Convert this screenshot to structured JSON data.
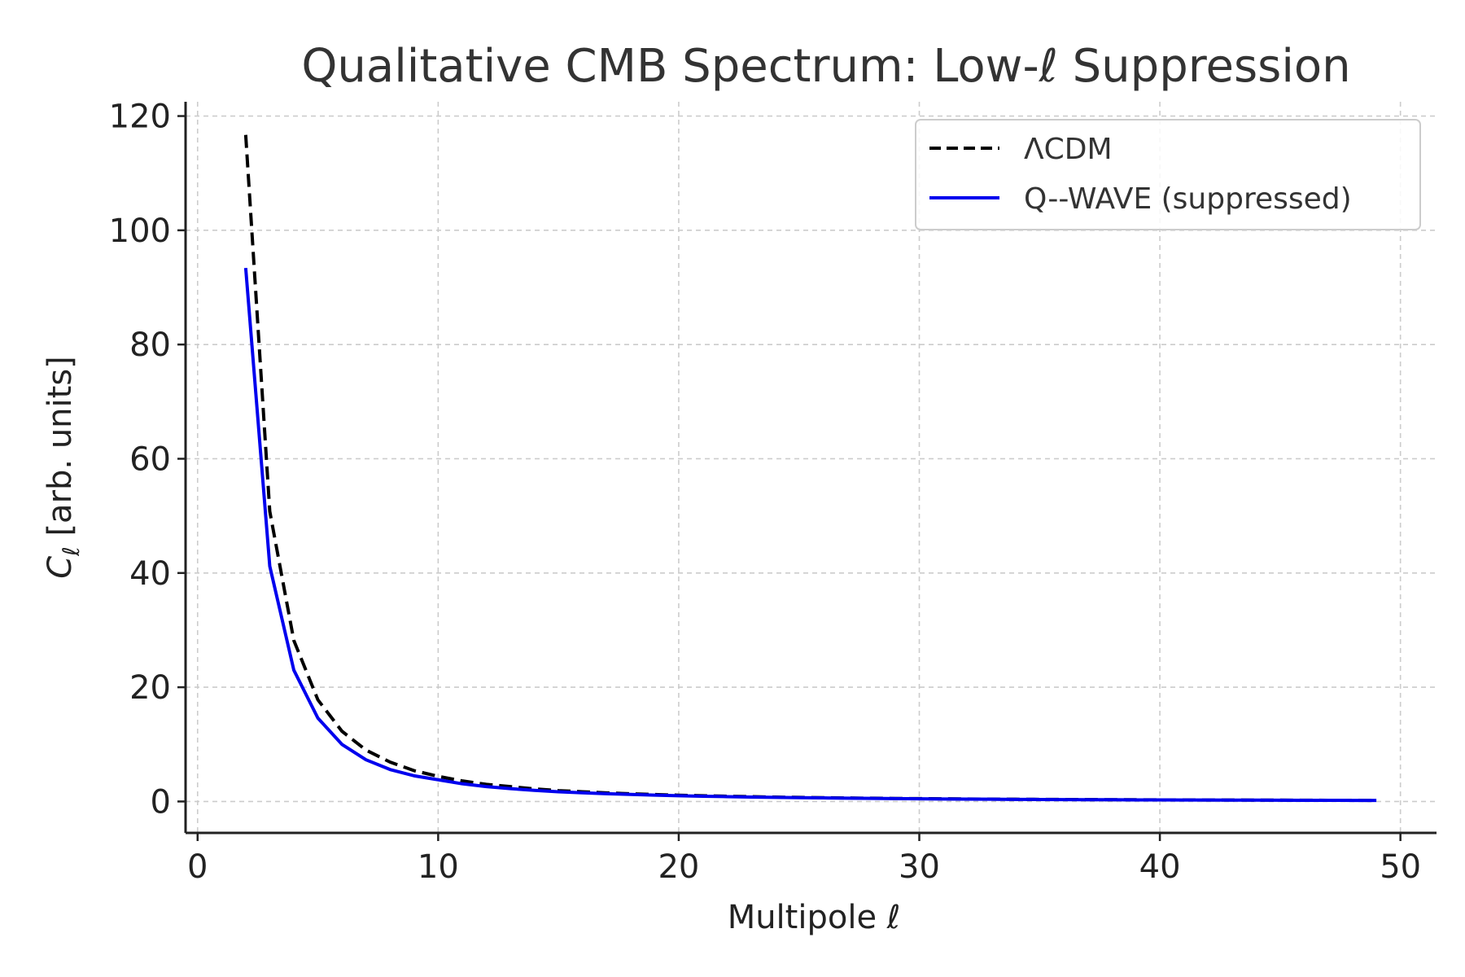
{
  "chart_data": {
    "type": "line",
    "title": "Qualitative CMB Spectrum: Low-ℓ Suppression",
    "xlabel": "Multipole ℓ",
    "ylabel_symbol": "C",
    "ylabel_subscript": "ℓ",
    "ylabel_rest": " [arb. units]",
    "xlim": [
      -0.5,
      51.5
    ],
    "ylim": [
      -5.5,
      122.5
    ],
    "xticks": [
      0,
      10,
      20,
      30,
      40,
      50
    ],
    "yticks": [
      0,
      20,
      40,
      60,
      80,
      100,
      120
    ],
    "grid": true,
    "legend_position": "top-right",
    "series": [
      {
        "name": "ΛCDM",
        "style": "dashed",
        "color": "#000000",
        "x": [
          2,
          3,
          4,
          5,
          6,
          7,
          8,
          9,
          10,
          11,
          12,
          13,
          14,
          15,
          16,
          17,
          18,
          19,
          20,
          21,
          22,
          23,
          24,
          25,
          26,
          27,
          28,
          29,
          30,
          31,
          32,
          33,
          34,
          35,
          36,
          37,
          38,
          39,
          40,
          41,
          42,
          43,
          44,
          45,
          46,
          47,
          48,
          49
        ],
        "values": [
          116.7,
          50.8,
          28.2,
          17.8,
          12.3,
          9.0,
          6.9,
          5.4,
          4.4,
          3.6,
          3.0,
          2.6,
          2.2,
          1.9,
          1.7,
          1.5,
          1.35,
          1.22,
          1.1,
          1.0,
          0.92,
          0.84,
          0.77,
          0.71,
          0.66,
          0.61,
          0.57,
          0.53,
          0.5,
          0.47,
          0.44,
          0.41,
          0.39,
          0.37,
          0.35,
          0.33,
          0.31,
          0.3,
          0.28,
          0.27,
          0.26,
          0.25,
          0.24,
          0.23,
          0.22,
          0.21,
          0.2,
          0.19
        ]
      },
      {
        "name": "Q--WAVE (suppressed)",
        "style": "solid",
        "color": "#0000ee",
        "x": [
          2,
          3,
          4,
          5,
          6,
          7,
          8,
          9,
          10,
          11,
          12,
          13,
          14,
          15,
          16,
          17,
          18,
          19,
          20,
          21,
          22,
          23,
          24,
          25,
          26,
          27,
          28,
          29,
          30,
          31,
          32,
          33,
          34,
          35,
          36,
          37,
          38,
          39,
          40,
          41,
          42,
          43,
          44,
          45,
          46,
          47,
          48,
          49
        ],
        "values": [
          93.4,
          41.2,
          23.0,
          14.6,
          10.0,
          7.3,
          5.6,
          4.5,
          3.8,
          3.1,
          2.6,
          2.25,
          1.95,
          1.7,
          1.52,
          1.36,
          1.23,
          1.11,
          1.0,
          0.92,
          0.85,
          0.78,
          0.72,
          0.66,
          0.62,
          0.58,
          0.54,
          0.5,
          0.47,
          0.44,
          0.42,
          0.39,
          0.37,
          0.35,
          0.33,
          0.31,
          0.3,
          0.28,
          0.27,
          0.26,
          0.25,
          0.24,
          0.23,
          0.22,
          0.21,
          0.2,
          0.19,
          0.18
        ]
      }
    ]
  }
}
